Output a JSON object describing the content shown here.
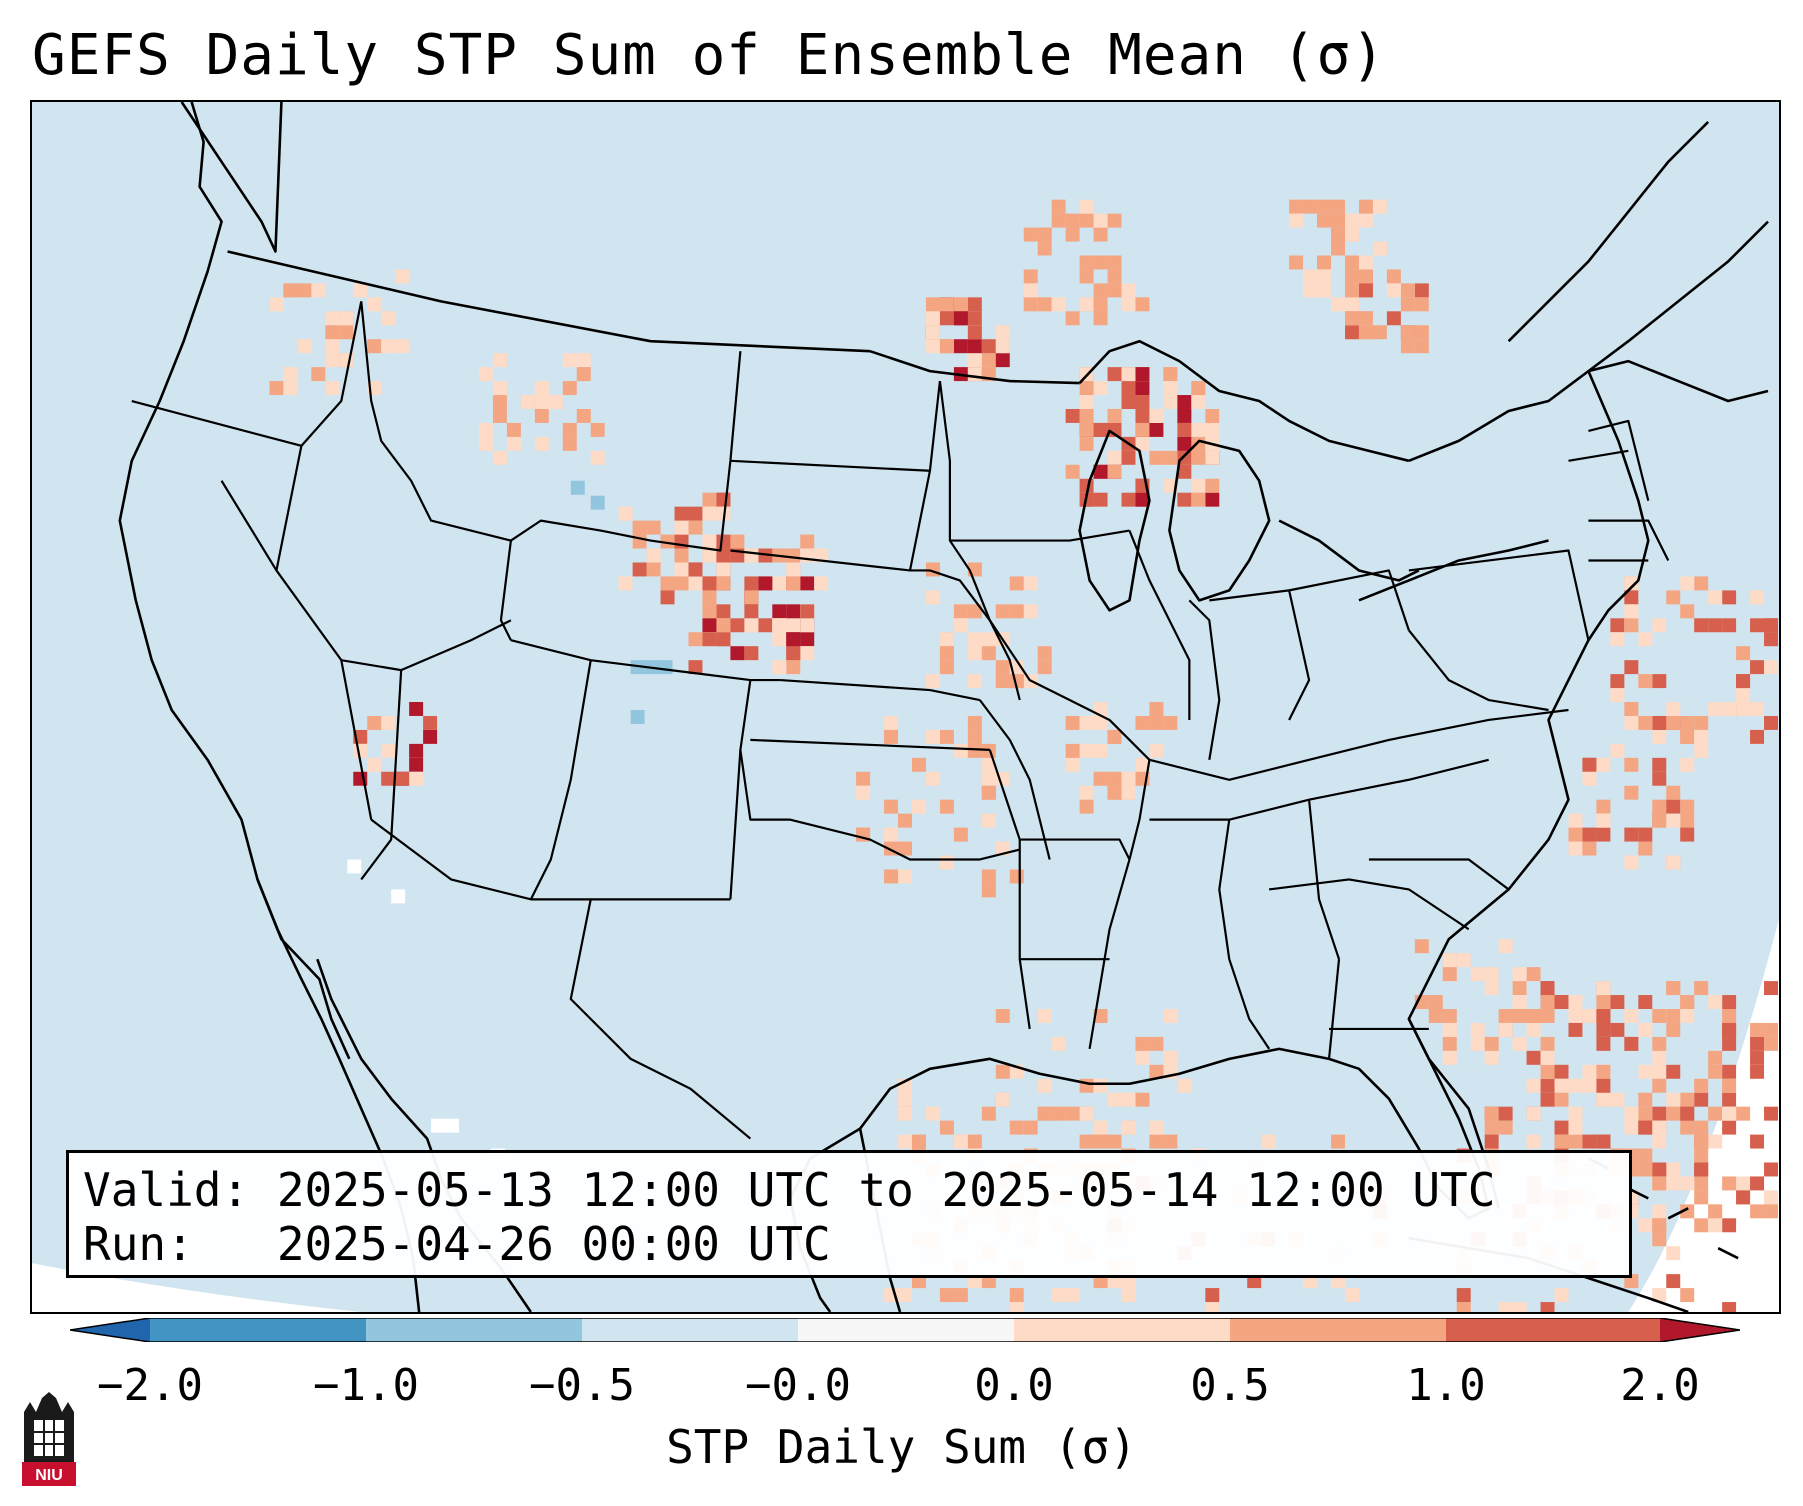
{
  "title": "GEFS Daily STP Sum of Ensemble Mean (σ)",
  "valid_line": "Valid: 2025-05-13 12:00 UTC to 2025-05-14 12:00 UTC",
  "run_line": "Run:   2025-04-26 00:00 UTC",
  "colorbar": {
    "label": "STP Daily Sum (σ)",
    "ticks": [
      "−2.0",
      "−1.0",
      "−0.5",
      "−0.0",
      "0.0",
      "0.5",
      "1.0",
      "2.0"
    ],
    "colors": [
      "#4393c3",
      "#92c5de",
      "#d1e5f0",
      "#f7f7f7",
      "#fddbc7",
      "#f4a582",
      "#d6604d",
      "#b2182b"
    ],
    "extend_low_color": "#2166ac",
    "extend_high_color": "#b2182b"
  },
  "map": {
    "background_color": "#d1e5f0",
    "coast_color": "#000000",
    "region": "Continental United States",
    "hotspots": [
      {
        "name": "upper-michigan-wisconsin",
        "level": 1.5
      },
      {
        "name": "minnesota-north-dakota-border",
        "level": 1.5
      },
      {
        "name": "eastern-colorado-front-range",
        "level": 1.5
      },
      {
        "name": "carolinas-coast-offshore",
        "level": 1.0
      },
      {
        "name": "bahamas-caribbean",
        "level": 1.0
      },
      {
        "name": "gulf-of-mexico",
        "level": 0.5
      }
    ]
  },
  "logo": {
    "text": "NIU"
  }
}
